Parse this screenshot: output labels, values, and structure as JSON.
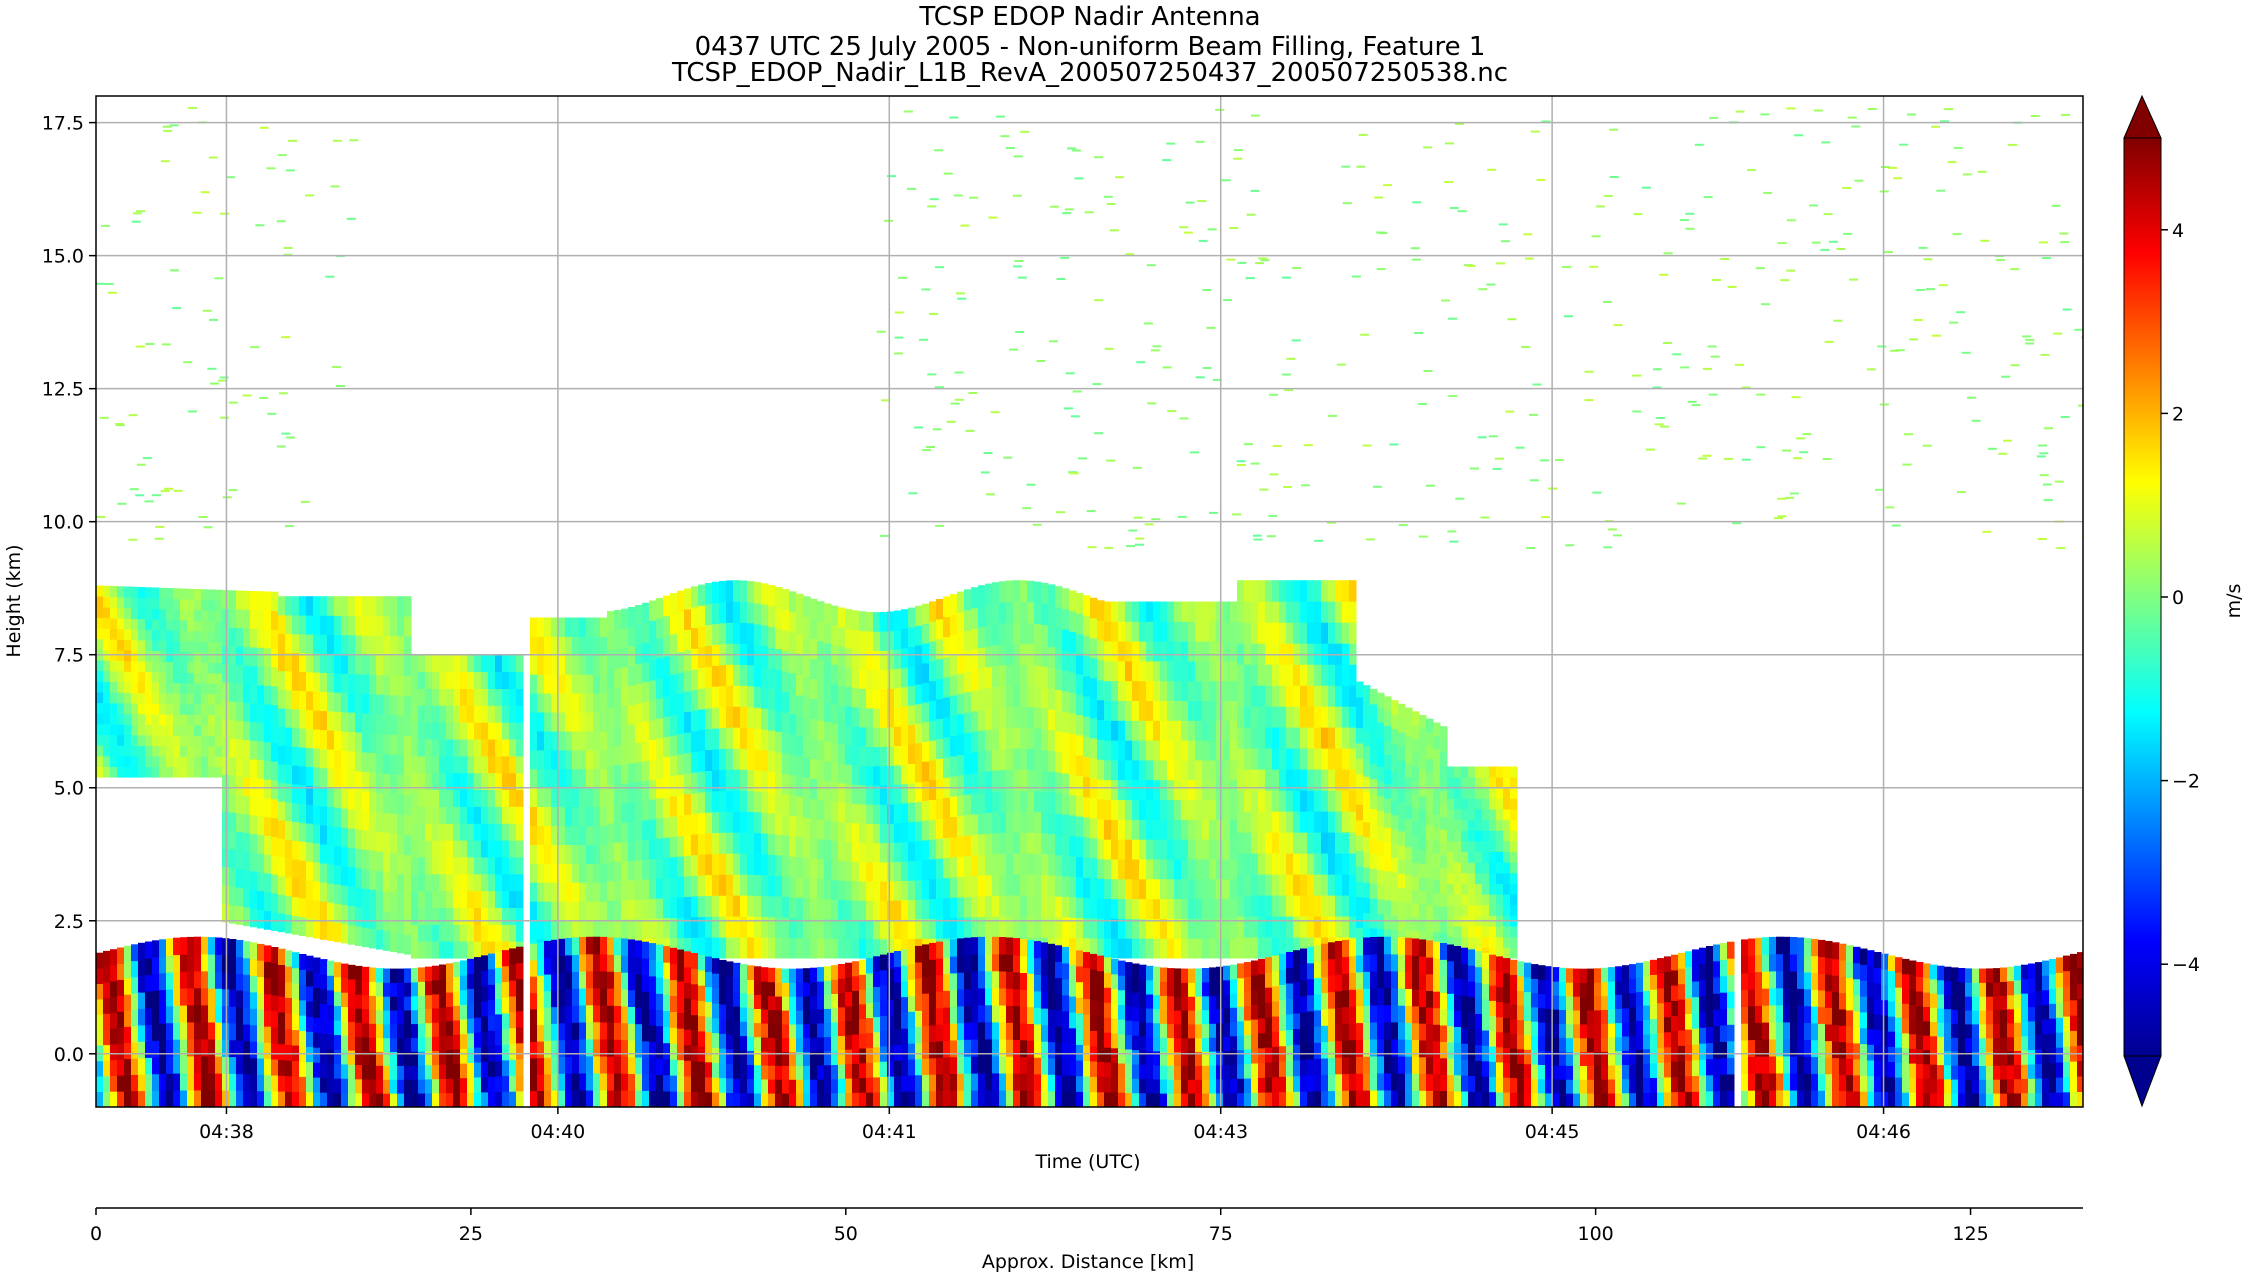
{
  "title": {
    "line1": "TCSP EDOP Nadir Antenna",
    "line2": "0437 UTC 25 July 2005 - Non-uniform Beam Filling, Feature 1",
    "line3": "TCSP_EDOP_Nadir_L1B_RevA_200507250437_200507250538.nc"
  },
  "chart_data": {
    "type": "heatmap",
    "title": "TCSP EDOP Nadir Antenna",
    "xlabel": "Time (UTC)",
    "ylabel": "Height (km)",
    "x_tick_labels": [
      "04:38",
      "04:40",
      "04:41",
      "04:43",
      "04:45",
      "04:46"
    ],
    "x_tick_positions_km": [
      8.7,
      30.8,
      52.9,
      75.0,
      97.1,
      119.2
    ],
    "y_ticks": [
      0.0,
      2.5,
      5.0,
      7.5,
      10.0,
      12.5,
      15.0,
      17.5
    ],
    "y_tick_labels": [
      "0.0",
      "2.5",
      "5.0",
      "7.5",
      "10.0",
      "12.5",
      "15.0",
      "17.5"
    ],
    "ylim": [
      -1.0,
      18.0
    ],
    "grid": true,
    "secondary_axis": {
      "xlabel": "Approx. Distance [km]",
      "ticks": [
        0,
        25,
        50,
        75,
        100,
        125
      ],
      "tick_labels": [
        "0",
        "25",
        "50",
        "75",
        "100",
        "125"
      ],
      "xlim": [
        0,
        132.5
      ]
    },
    "colorbar": {
      "label": "m/s",
      "colormap": "jet",
      "vmin": -5,
      "vmax": 5,
      "ticks": [
        4,
        2,
        0,
        -2,
        -4
      ],
      "tick_labels": [
        "4",
        "2",
        "0",
        "−2",
        "−4"
      ],
      "extend": "both"
    },
    "features": {
      "mid_level_cloud_top_km": [
        8.5,
        9.0
      ],
      "melting_layer_km": [
        1.8,
        2.2
      ],
      "data_gaps_km": [
        28.5,
        109.2
      ]
    }
  }
}
